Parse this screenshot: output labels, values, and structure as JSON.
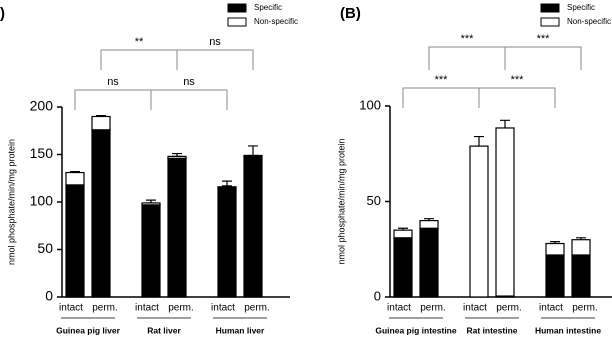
{
  "chart_data": [
    {
      "type": "bar",
      "stacked": true,
      "panel_label": ")",
      "y_label": "nmol phosphate/min/mg protein",
      "groups": [
        "Guinea pig liver",
        "Rat liver",
        "Human liver"
      ],
      "categories": [
        "intact",
        "perm.",
        "intact",
        "perm.",
        "intact",
        "perm."
      ],
      "series": [
        {
          "name": "Specific",
          "color": "#000000",
          "values": [
            118,
            176,
            97,
            146,
            115,
            148
          ],
          "errors": [
            8,
            4,
            2,
            2,
            2,
            1
          ]
        },
        {
          "name": "Non-specific",
          "color": "#ffffff",
          "values": [
            13,
            14,
            2,
            2,
            1,
            1
          ],
          "errors": [
            1,
            1,
            3,
            3,
            6,
            10
          ]
        }
      ],
      "annotations": [
        "**",
        "ns",
        "ns",
        "ns"
      ],
      "ylim": [
        0,
        200
      ],
      "yticks": [
        0,
        50,
        100,
        150,
        200
      ]
    },
    {
      "type": "bar",
      "stacked": true,
      "panel_label": "(B)",
      "y_label": "nmol phosphate/min/mg protein",
      "groups": [
        "Guinea pig intestine",
        "Rat intestine",
        "Human intestine"
      ],
      "categories": [
        "intact",
        "perm.",
        "intact",
        "perm.",
        "intact",
        "perm."
      ],
      "series": [
        {
          "name": "Specific",
          "color": "#000000",
          "values": [
            31,
            36,
            0,
            0.5,
            22,
            22
          ],
          "errors": [
            1,
            1,
            null,
            null,
            1,
            1
          ]
        },
        {
          "name": "Non-specific",
          "color": "#ffffff",
          "values": [
            4,
            4,
            79,
            88,
            6,
            8
          ],
          "errors": [
            1,
            1,
            5,
            4,
            1,
            1
          ]
        }
      ],
      "annotations": [
        "***",
        "***",
        "***",
        "***"
      ],
      "ylim": [
        0,
        100
      ],
      "yticks": [
        0,
        50,
        100
      ]
    }
  ]
}
